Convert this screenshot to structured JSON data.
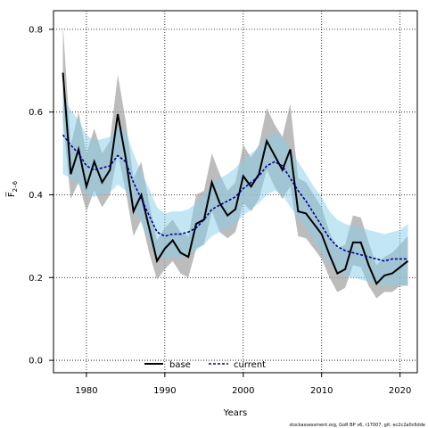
{
  "chart_data": {
    "type": "line",
    "xlabel": "Years",
    "ylabel": "F̅",
    "ylabel_subscript": "2–6",
    "xlim": [
      1975.8,
      2022.2
    ],
    "ylim": [
      -0.03,
      0.845
    ],
    "x_ticks": [
      1980,
      1990,
      2000,
      2010,
      2020
    ],
    "y_ticks": [
      0.0,
      0.2,
      0.4,
      0.6,
      0.8
    ],
    "x_tick_labels": [
      "1980",
      "1990",
      "2000",
      "2010",
      "2020"
    ],
    "y_tick_labels": [
      "0.0",
      "0.2",
      "0.4",
      "0.6",
      "0.8"
    ],
    "grid": true,
    "legend_position": "bottom-center",
    "x": [
      1977,
      1978,
      1979,
      1980,
      1981,
      1982,
      1983,
      1984,
      1985,
      1986,
      1987,
      1988,
      1989,
      1990,
      1991,
      1992,
      1993,
      1994,
      1995,
      1996,
      1997,
      1998,
      1999,
      2000,
      2001,
      2002,
      2003,
      2004,
      2005,
      2006,
      2007,
      2008,
      2009,
      2010,
      2011,
      2012,
      2013,
      2014,
      2015,
      2016,
      2017,
      2018,
      2019,
      2020,
      2021
    ],
    "series": [
      {
        "name": "base",
        "color": "#000000",
        "band_color": "#a6a6a6",
        "values": [
          0.695,
          0.45,
          0.51,
          0.42,
          0.48,
          0.43,
          0.46,
          0.595,
          0.49,
          0.36,
          0.4,
          0.32,
          0.24,
          0.27,
          0.29,
          0.26,
          0.25,
          0.33,
          0.34,
          0.43,
          0.38,
          0.35,
          0.365,
          0.445,
          0.42,
          0.45,
          0.53,
          0.495,
          0.46,
          0.51,
          0.36,
          0.355,
          0.33,
          0.305,
          0.255,
          0.21,
          0.22,
          0.285,
          0.285,
          0.23,
          0.185,
          0.205,
          0.21,
          0.225,
          0.24
        ],
        "lower": [
          0.58,
          0.39,
          0.43,
          0.36,
          0.41,
          0.37,
          0.4,
          0.5,
          0.41,
          0.3,
          0.34,
          0.26,
          0.195,
          0.22,
          0.24,
          0.21,
          0.2,
          0.27,
          0.28,
          0.36,
          0.31,
          0.295,
          0.31,
          0.38,
          0.36,
          0.39,
          0.46,
          0.42,
          0.39,
          0.42,
          0.3,
          0.295,
          0.27,
          0.245,
          0.2,
          0.165,
          0.175,
          0.23,
          0.225,
          0.18,
          0.15,
          0.165,
          0.165,
          0.18,
          0.18
        ],
        "upper": [
          0.81,
          0.52,
          0.6,
          0.5,
          0.56,
          0.5,
          0.53,
          0.69,
          0.58,
          0.44,
          0.48,
          0.38,
          0.29,
          0.32,
          0.34,
          0.31,
          0.3,
          0.4,
          0.41,
          0.5,
          0.45,
          0.41,
          0.43,
          0.52,
          0.49,
          0.52,
          0.61,
          0.57,
          0.54,
          0.62,
          0.44,
          0.43,
          0.4,
          0.37,
          0.31,
          0.27,
          0.28,
          0.35,
          0.345,
          0.285,
          0.23,
          0.25,
          0.26,
          0.28,
          0.3
        ]
      },
      {
        "name": "current",
        "color": "#00008b",
        "band_color": "#87ceeb",
        "values": [
          0.545,
          0.52,
          0.5,
          0.47,
          0.46,
          0.465,
          0.47,
          0.495,
          0.48,
          0.43,
          0.39,
          0.35,
          0.31,
          0.3,
          0.305,
          0.305,
          0.31,
          0.32,
          0.34,
          0.365,
          0.375,
          0.385,
          0.395,
          0.415,
          0.43,
          0.445,
          0.47,
          0.48,
          0.47,
          0.44,
          0.41,
          0.385,
          0.355,
          0.325,
          0.295,
          0.275,
          0.265,
          0.26,
          0.255,
          0.25,
          0.245,
          0.24,
          0.245,
          0.245,
          0.245
        ],
        "lower": [
          0.45,
          0.44,
          0.425,
          0.4,
          0.395,
          0.4,
          0.405,
          0.425,
          0.41,
          0.365,
          0.33,
          0.29,
          0.255,
          0.245,
          0.25,
          0.25,
          0.255,
          0.265,
          0.28,
          0.3,
          0.31,
          0.32,
          0.33,
          0.35,
          0.365,
          0.38,
          0.4,
          0.41,
          0.4,
          0.37,
          0.345,
          0.32,
          0.29,
          0.26,
          0.235,
          0.215,
          0.205,
          0.2,
          0.195,
          0.19,
          0.185,
          0.18,
          0.18,
          0.18,
          0.18
        ],
        "upper": [
          0.64,
          0.605,
          0.58,
          0.545,
          0.53,
          0.535,
          0.54,
          0.57,
          0.555,
          0.5,
          0.455,
          0.415,
          0.37,
          0.355,
          0.36,
          0.36,
          0.365,
          0.38,
          0.4,
          0.43,
          0.44,
          0.45,
          0.465,
          0.485,
          0.5,
          0.515,
          0.54,
          0.55,
          0.54,
          0.51,
          0.48,
          0.45,
          0.42,
          0.395,
          0.36,
          0.34,
          0.33,
          0.325,
          0.32,
          0.315,
          0.31,
          0.305,
          0.31,
          0.315,
          0.33
        ]
      }
    ]
  },
  "footer": {
    "credit": "stockassessment.org, GoR BP v6, r17007, git: ec2c2a0c6dde"
  }
}
